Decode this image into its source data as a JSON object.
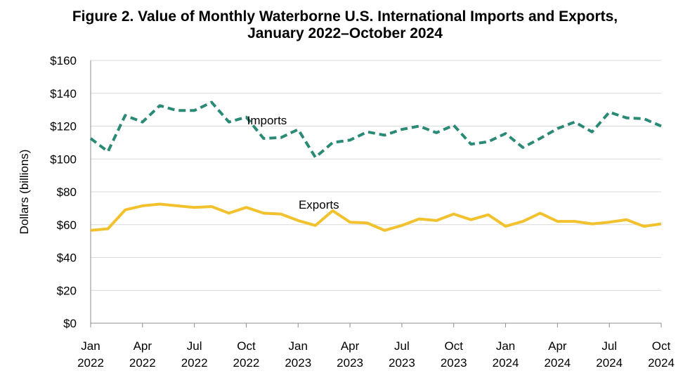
{
  "chart_data": {
    "type": "line",
    "title_line1": "Figure 2. Value of Monthly Waterborne U.S. International Imports and Exports,",
    "title_line2": "January 2022–October 2024",
    "xlabel": "",
    "ylabel": "Dollars (billions)",
    "ylim": [
      0,
      160
    ],
    "yticks": [
      "$0",
      "$20",
      "$40",
      "$60",
      "$80",
      "$100",
      "$120",
      "$140",
      "$160"
    ],
    "ytick_values": [
      0,
      20,
      40,
      60,
      80,
      100,
      120,
      140,
      160
    ],
    "grid": true,
    "x": [
      "2022-01",
      "2022-02",
      "2022-03",
      "2022-04",
      "2022-05",
      "2022-06",
      "2022-07",
      "2022-08",
      "2022-09",
      "2022-10",
      "2022-11",
      "2022-12",
      "2023-01",
      "2023-02",
      "2023-03",
      "2023-04",
      "2023-05",
      "2023-06",
      "2023-07",
      "2023-08",
      "2023-09",
      "2023-10",
      "2023-11",
      "2023-12",
      "2024-01",
      "2024-02",
      "2024-03",
      "2024-04",
      "2024-05",
      "2024-06",
      "2024-07",
      "2024-08",
      "2024-09",
      "2024-10"
    ],
    "xticks": [
      {
        "month": "2022-01",
        "line1": "Jan",
        "line2": "2022"
      },
      {
        "month": "2022-04",
        "line1": "Apr",
        "line2": "2022"
      },
      {
        "month": "2022-07",
        "line1": "Jul",
        "line2": "2022"
      },
      {
        "month": "2022-10",
        "line1": "Oct",
        "line2": "2022"
      },
      {
        "month": "2023-01",
        "line1": "Jan",
        "line2": "2023"
      },
      {
        "month": "2023-04",
        "line1": "Apr",
        "line2": "2023"
      },
      {
        "month": "2023-07",
        "line1": "Jul",
        "line2": "2023"
      },
      {
        "month": "2023-10",
        "line1": "Oct",
        "line2": "2023"
      },
      {
        "month": "2024-01",
        "line1": "Jan",
        "line2": "2024"
      },
      {
        "month": "2024-04",
        "line1": "Apr",
        "line2": "2024"
      },
      {
        "month": "2024-07",
        "line1": "Jul",
        "line2": "2024"
      },
      {
        "month": "2024-10",
        "line1": "Oct",
        "line2": "2024"
      }
    ],
    "series": [
      {
        "name": "Imports",
        "color": "#2a8a76",
        "style": "dashed",
        "values": [
          112.5,
          104.5,
          126.5,
          122.5,
          132.5,
          129.5,
          129.5,
          134.5,
          122.5,
          125.5,
          112.5,
          113,
          118,
          101,
          110,
          111.5,
          116.5,
          114.5,
          118,
          120,
          116,
          120.5,
          109,
          110.5,
          115.5,
          107,
          112.5,
          118.5,
          122.5,
          116.5,
          128.5,
          125,
          124.5,
          120
        ]
      },
      {
        "name": "Exports",
        "color": "#f2c12e",
        "style": "solid",
        "values": [
          56.5,
          57.5,
          69,
          71.5,
          72.5,
          71.5,
          70.5,
          71,
          67,
          70.5,
          67,
          66.5,
          62.5,
          59.5,
          68.5,
          61.5,
          61,
          56.5,
          59.5,
          63.5,
          62.5,
          66.5,
          63,
          66,
          59,
          62,
          67,
          62,
          62,
          60.5,
          61.5,
          63,
          59,
          60.5
        ]
      }
    ]
  }
}
